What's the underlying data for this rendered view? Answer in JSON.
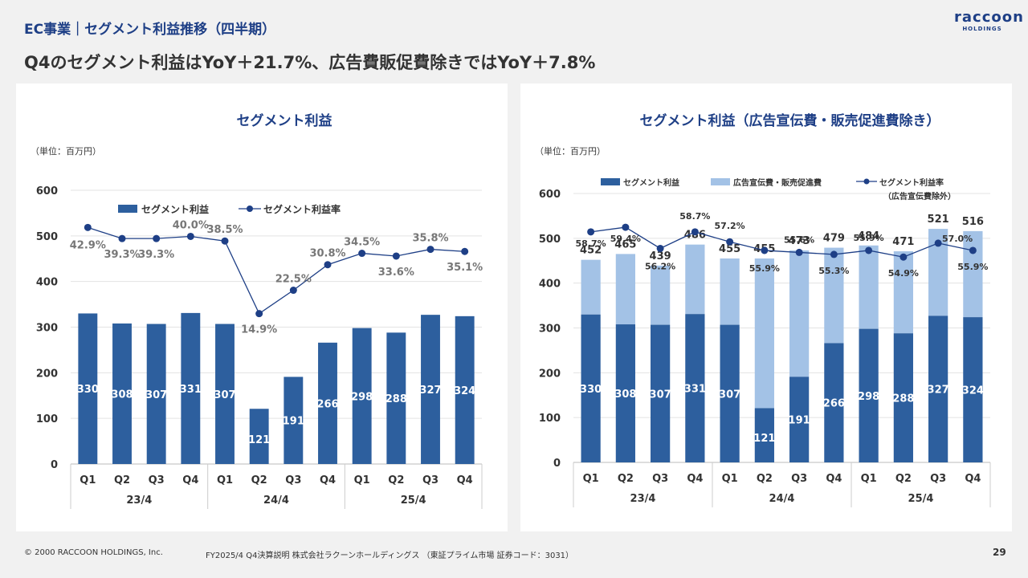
{
  "header": {
    "title": "EC事業｜セグメント利益推移（四半期）",
    "subtitle": "Q4のセグメント利益はYoY＋21.7%、広告費販促費除きではYoY＋7.8%"
  },
  "logo": {
    "word": "raccoon",
    "sub": "HOLDINGS"
  },
  "footer": {
    "copyright": "© 2000 RACCOON HOLDINGS, Inc.",
    "doc": "FY2025/4 Q4決算説明 株式会社ラクーンホールディングス （東証プライム市場 証券コード：3031）",
    "page": "29"
  },
  "colors": {
    "bar_dark": "#2d5f9e",
    "bar_light": "#a3c2e6",
    "line": "#1e3f86",
    "title": "#1e3f86"
  },
  "chart_data": [
    {
      "type": "bar",
      "title": "セグメント利益",
      "unit": "（単位：百万円）",
      "categories": [
        "Q1",
        "Q2",
        "Q3",
        "Q4",
        "Q1",
        "Q2",
        "Q3",
        "Q4",
        "Q1",
        "Q2",
        "Q3",
        "Q4"
      ],
      "groups": [
        {
          "label": "23/4",
          "count": 4
        },
        {
          "label": "24/4",
          "count": 4
        },
        {
          "label": "25/4",
          "count": 4
        }
      ],
      "ylim": [
        0,
        600
      ],
      "yticks": [
        0,
        100,
        200,
        300,
        400,
        500,
        600
      ],
      "grid": true,
      "legend_position": "top",
      "series": [
        {
          "name": "セグメント利益",
          "kind": "bar",
          "values": [
            330,
            308,
            307,
            331,
            307,
            121,
            191,
            266,
            298,
            288,
            327,
            324
          ]
        },
        {
          "name": "セグメント利益率",
          "kind": "line",
          "values": [
            42.9,
            39.3,
            39.3,
            40.0,
            38.5,
            14.9,
            22.5,
            30.8,
            34.5,
            33.6,
            35.8,
            35.1
          ],
          "labels": [
            "42.9%",
            "39.3%",
            "39.3%",
            "40.0%",
            "38.5%",
            "14.9%",
            "22.5%",
            "30.8%",
            "34.5%",
            "33.6%",
            "35.8%",
            "35.1%"
          ]
        }
      ]
    },
    {
      "type": "bar",
      "title": "セグメント利益（広告宣伝費・販売促進費除き）",
      "unit": "（単位：百万円）",
      "categories": [
        "Q1",
        "Q2",
        "Q3",
        "Q4",
        "Q1",
        "Q2",
        "Q3",
        "Q4",
        "Q1",
        "Q2",
        "Q3",
        "Q4"
      ],
      "groups": [
        {
          "label": "23/4",
          "count": 4
        },
        {
          "label": "24/4",
          "count": 4
        },
        {
          "label": "25/4",
          "count": 4
        }
      ],
      "ylim": [
        0,
        600
      ],
      "yticks": [
        0,
        100,
        200,
        300,
        400,
        500,
        600
      ],
      "grid": true,
      "legend_position": "top",
      "series": [
        {
          "name": "セグメント利益",
          "kind": "bar",
          "values": [
            330,
            308,
            307,
            331,
            307,
            121,
            191,
            266,
            298,
            288,
            327,
            324
          ]
        },
        {
          "name": "広告宣伝費・販売促進費",
          "kind": "bar-stacked",
          "values": [
            122,
            157,
            132,
            155,
            148,
            334,
            282,
            213,
            186,
            183,
            194,
            192
          ]
        },
        {
          "name": "セグメント利益率",
          "name_note": "（広告宣伝費除外）",
          "kind": "line",
          "values": [
            58.7,
            59.4,
            56.2,
            58.7,
            57.2,
            55.9,
            55.6,
            55.3,
            55.9,
            54.9,
            57.0,
            55.9
          ],
          "labels": [
            "58.7%",
            "59.4%",
            "56.2%",
            "58.7%",
            "57.2%",
            "55.9%",
            "55.6%",
            "55.3%",
            "55.9%",
            "54.9%",
            "57.0%",
            "55.9%"
          ]
        }
      ],
      "totals": [
        "452",
        "465",
        "439",
        "486",
        "455",
        "455",
        "473",
        "479",
        "484",
        "471",
        "521",
        "516"
      ]
    }
  ]
}
